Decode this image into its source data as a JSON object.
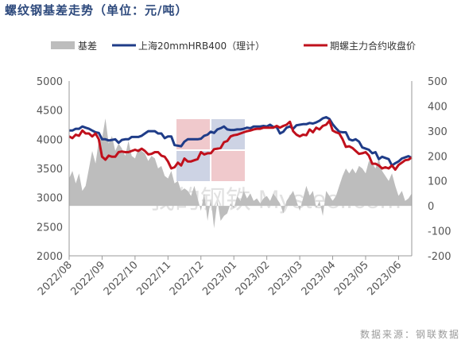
{
  "title": "螺纹钢基差走势（单位：元/吨）",
  "source": "数据来源：钢联数据",
  "watermark": "我的钢铁 Mysteel.com",
  "colors": {
    "basis": "#bdbdbd",
    "futures_price": "#1F3C88",
    "main_contract": "#C0101C",
    "title": "#2E4A7D",
    "axis_text": "#555555"
  },
  "chart_data": {
    "type": "line",
    "x_tick_labels": [
      "2022/08",
      "2022/09",
      "2022/10",
      "2022/11",
      "2022/12",
      "2023/01",
      "2023/02",
      "2023/03",
      "2023/04",
      "2023/05",
      "2023/06"
    ],
    "y_left": {
      "ticks": [
        2000,
        2500,
        3000,
        3500,
        4000,
        4500,
        5000
      ],
      "ylim": [
        2000,
        5000
      ]
    },
    "y_right": {
      "ticks": [
        -200,
        -100,
        0,
        100,
        200,
        300,
        400,
        500
      ],
      "ylim": [
        -200,
        500
      ]
    },
    "grid": false,
    "legend_position": "top",
    "series": [
      {
        "name": "基差",
        "style": "area",
        "axis": "right",
        "x": [
          0,
          0.1,
          0.2,
          0.3,
          0.4,
          0.5,
          0.6,
          0.7,
          0.8,
          0.9,
          1.0,
          1.1,
          1.2,
          1.3,
          1.4,
          1.5,
          1.6,
          1.7,
          1.8,
          1.9,
          2.0,
          2.1,
          2.2,
          2.3,
          2.4,
          2.5,
          2.6,
          2.7,
          2.8,
          2.9,
          3.0,
          3.1,
          3.2,
          3.3,
          3.4,
          3.5,
          3.6,
          3.7,
          3.8,
          3.9,
          4.0,
          4.1,
          4.2,
          4.3,
          4.4,
          4.5,
          4.6,
          4.7,
          4.8,
          4.9,
          5.0,
          5.1,
          5.2,
          5.3,
          5.4,
          5.5,
          5.6,
          5.7,
          5.8,
          5.9,
          6.0,
          6.1,
          6.2,
          6.3,
          6.4,
          6.5,
          6.6,
          6.7,
          6.8,
          6.9,
          7.0,
          7.1,
          7.2,
          7.3,
          7.4,
          7.5,
          7.6,
          7.7,
          7.8,
          7.9,
          8.0,
          8.1,
          8.2,
          8.3,
          8.4,
          8.5,
          8.6,
          8.7,
          8.8,
          8.9,
          9.0,
          9.1,
          9.2,
          9.3,
          9.4,
          9.5,
          9.6,
          9.7,
          9.8,
          9.9,
          10.0,
          10.1,
          10.2,
          10.3,
          10.4
        ],
        "values": [
          110,
          140,
          90,
          130,
          60,
          80,
          150,
          220,
          170,
          260,
          270,
          350,
          250,
          280,
          220,
          250,
          230,
          200,
          260,
          200,
          190,
          230,
          220,
          210,
          180,
          200,
          190,
          150,
          160,
          120,
          110,
          140,
          90,
          100,
          60,
          70,
          60,
          40,
          80,
          30,
          -20,
          50,
          -60,
          30,
          -90,
          20,
          -60,
          -40,
          -30,
          10,
          -10,
          40,
          20,
          60,
          30,
          50,
          20,
          30,
          10,
          30,
          40,
          20,
          50,
          30,
          10,
          -30,
          20,
          40,
          60,
          20,
          -20,
          30,
          80,
          40,
          60,
          -10,
          20,
          -40,
          60,
          40,
          20,
          40,
          80,
          120,
          150,
          130,
          150,
          130,
          160,
          150,
          130,
          180,
          170,
          150,
          190,
          140,
          120,
          100,
          130,
          80,
          40,
          60,
          20,
          30,
          50
        ]
      },
      {
        "name": "上海20mmHRB400（理计）",
        "axis": "left",
        "x": [
          0,
          0.1,
          0.2,
          0.3,
          0.4,
          0.5,
          0.6,
          0.7,
          0.8,
          0.9,
          1.0,
          1.1,
          1.2,
          1.3,
          1.4,
          1.5,
          1.6,
          1.7,
          1.8,
          1.9,
          2.0,
          2.1,
          2.2,
          2.3,
          2.4,
          2.5,
          2.6,
          2.7,
          2.8,
          2.9,
          3.0,
          3.1,
          3.2,
          3.3,
          3.4,
          3.5,
          3.6,
          3.7,
          3.8,
          3.9,
          4.0,
          4.1,
          4.2,
          4.3,
          4.4,
          4.5,
          4.6,
          4.7,
          4.8,
          4.9,
          5.0,
          5.1,
          5.2,
          5.3,
          5.4,
          5.5,
          5.6,
          5.7,
          5.8,
          5.9,
          6.0,
          6.1,
          6.2,
          6.3,
          6.4,
          6.5,
          6.6,
          6.7,
          6.8,
          6.9,
          7.0,
          7.1,
          7.2,
          7.3,
          7.4,
          7.5,
          7.6,
          7.7,
          7.8,
          7.9,
          8.0,
          8.1,
          8.2,
          8.3,
          8.4,
          8.5,
          8.6,
          8.7,
          8.8,
          8.9,
          9.0,
          9.1,
          9.2,
          9.3,
          9.4,
          9.5,
          9.6,
          9.7,
          9.8,
          9.9,
          10.0,
          10.1,
          10.2,
          10.3,
          10.4
        ],
        "values": [
          4150,
          4150,
          4180,
          4180,
          4220,
          4200,
          4180,
          4150,
          4120,
          4110,
          4000,
          4000,
          3980,
          3990,
          4000,
          3940,
          3990,
          4000,
          4000,
          4040,
          4040,
          4040,
          4060,
          4100,
          4140,
          4140,
          4140,
          4100,
          4100,
          4020,
          4050,
          4050,
          3900,
          3890,
          3880,
          3960,
          4000,
          4000,
          4000,
          4000,
          4010,
          4060,
          4080,
          4130,
          4110,
          4170,
          4190,
          4220,
          4170,
          4160,
          4160,
          4170,
          4170,
          4180,
          4200,
          4190,
          4220,
          4220,
          4220,
          4230,
          4220,
          4250,
          4210,
          4210,
          4100,
          4130,
          4200,
          4220,
          4180,
          4240,
          4250,
          4260,
          4260,
          4280,
          4270,
          4290,
          4320,
          4360,
          4380,
          4350,
          4260,
          4190,
          4130,
          4120,
          4120,
          4000,
          3980,
          4000,
          3960,
          3860,
          3840,
          3820,
          3760,
          3780,
          3660,
          3700,
          3680,
          3660,
          3550,
          3590,
          3620,
          3670,
          3690,
          3710,
          3680
        ]
      },
      {
        "name": "期螺主力合约收盘价",
        "axis": "left",
        "x": [
          0,
          0.1,
          0.2,
          0.3,
          0.4,
          0.5,
          0.6,
          0.7,
          0.8,
          0.9,
          1.0,
          1.1,
          1.2,
          1.3,
          1.4,
          1.5,
          1.6,
          1.7,
          1.8,
          1.9,
          2.0,
          2.1,
          2.2,
          2.3,
          2.4,
          2.5,
          2.6,
          2.7,
          2.8,
          2.9,
          3.0,
          3.1,
          3.2,
          3.3,
          3.4,
          3.5,
          3.6,
          3.7,
          3.8,
          3.9,
          4.0,
          4.1,
          4.2,
          4.3,
          4.4,
          4.5,
          4.6,
          4.7,
          4.8,
          4.9,
          5.0,
          5.1,
          5.2,
          5.3,
          5.4,
          5.5,
          5.6,
          5.7,
          5.8,
          5.9,
          6.0,
          6.1,
          6.2,
          6.3,
          6.4,
          6.5,
          6.6,
          6.7,
          6.8,
          6.9,
          7.0,
          7.1,
          7.2,
          7.3,
          7.4,
          7.5,
          7.6,
          7.7,
          7.8,
          7.9,
          8.0,
          8.1,
          8.2,
          8.3,
          8.4,
          8.5,
          8.6,
          8.7,
          8.8,
          8.9,
          9.0,
          9.1,
          9.2,
          9.3,
          9.4,
          9.5,
          9.6,
          9.7,
          9.8,
          9.9,
          10.0,
          10.1,
          10.2,
          10.3,
          10.4
        ],
        "values": [
          4050,
          4020,
          4080,
          4060,
          4150,
          4100,
          4100,
          4050,
          4100,
          4000,
          3700,
          3650,
          3720,
          3700,
          3700,
          3780,
          3790,
          3780,
          3780,
          3800,
          3820,
          3800,
          3840,
          3800,
          3740,
          3750,
          3780,
          3780,
          3720,
          3700,
          3620,
          3500,
          3520,
          3600,
          3550,
          3670,
          3620,
          3620,
          3640,
          3660,
          3780,
          3740,
          3760,
          3760,
          3830,
          3840,
          3850,
          3950,
          3970,
          4050,
          4070,
          4080,
          4100,
          4120,
          4140,
          4150,
          4170,
          4180,
          4180,
          4200,
          4200,
          4200,
          4200,
          4230,
          4200,
          4230,
          4250,
          4300,
          4140,
          4080,
          4050,
          4080,
          4070,
          4170,
          4120,
          4200,
          4170,
          4230,
          4250,
          4320,
          4150,
          4120,
          4100,
          4000,
          3870,
          3880,
          3850,
          3800,
          3750,
          3760,
          3780,
          3720,
          3580,
          3580,
          3550,
          3500,
          3520,
          3500,
          3550,
          3480,
          3560,
          3600,
          3640,
          3650,
          3690
        ]
      }
    ]
  }
}
